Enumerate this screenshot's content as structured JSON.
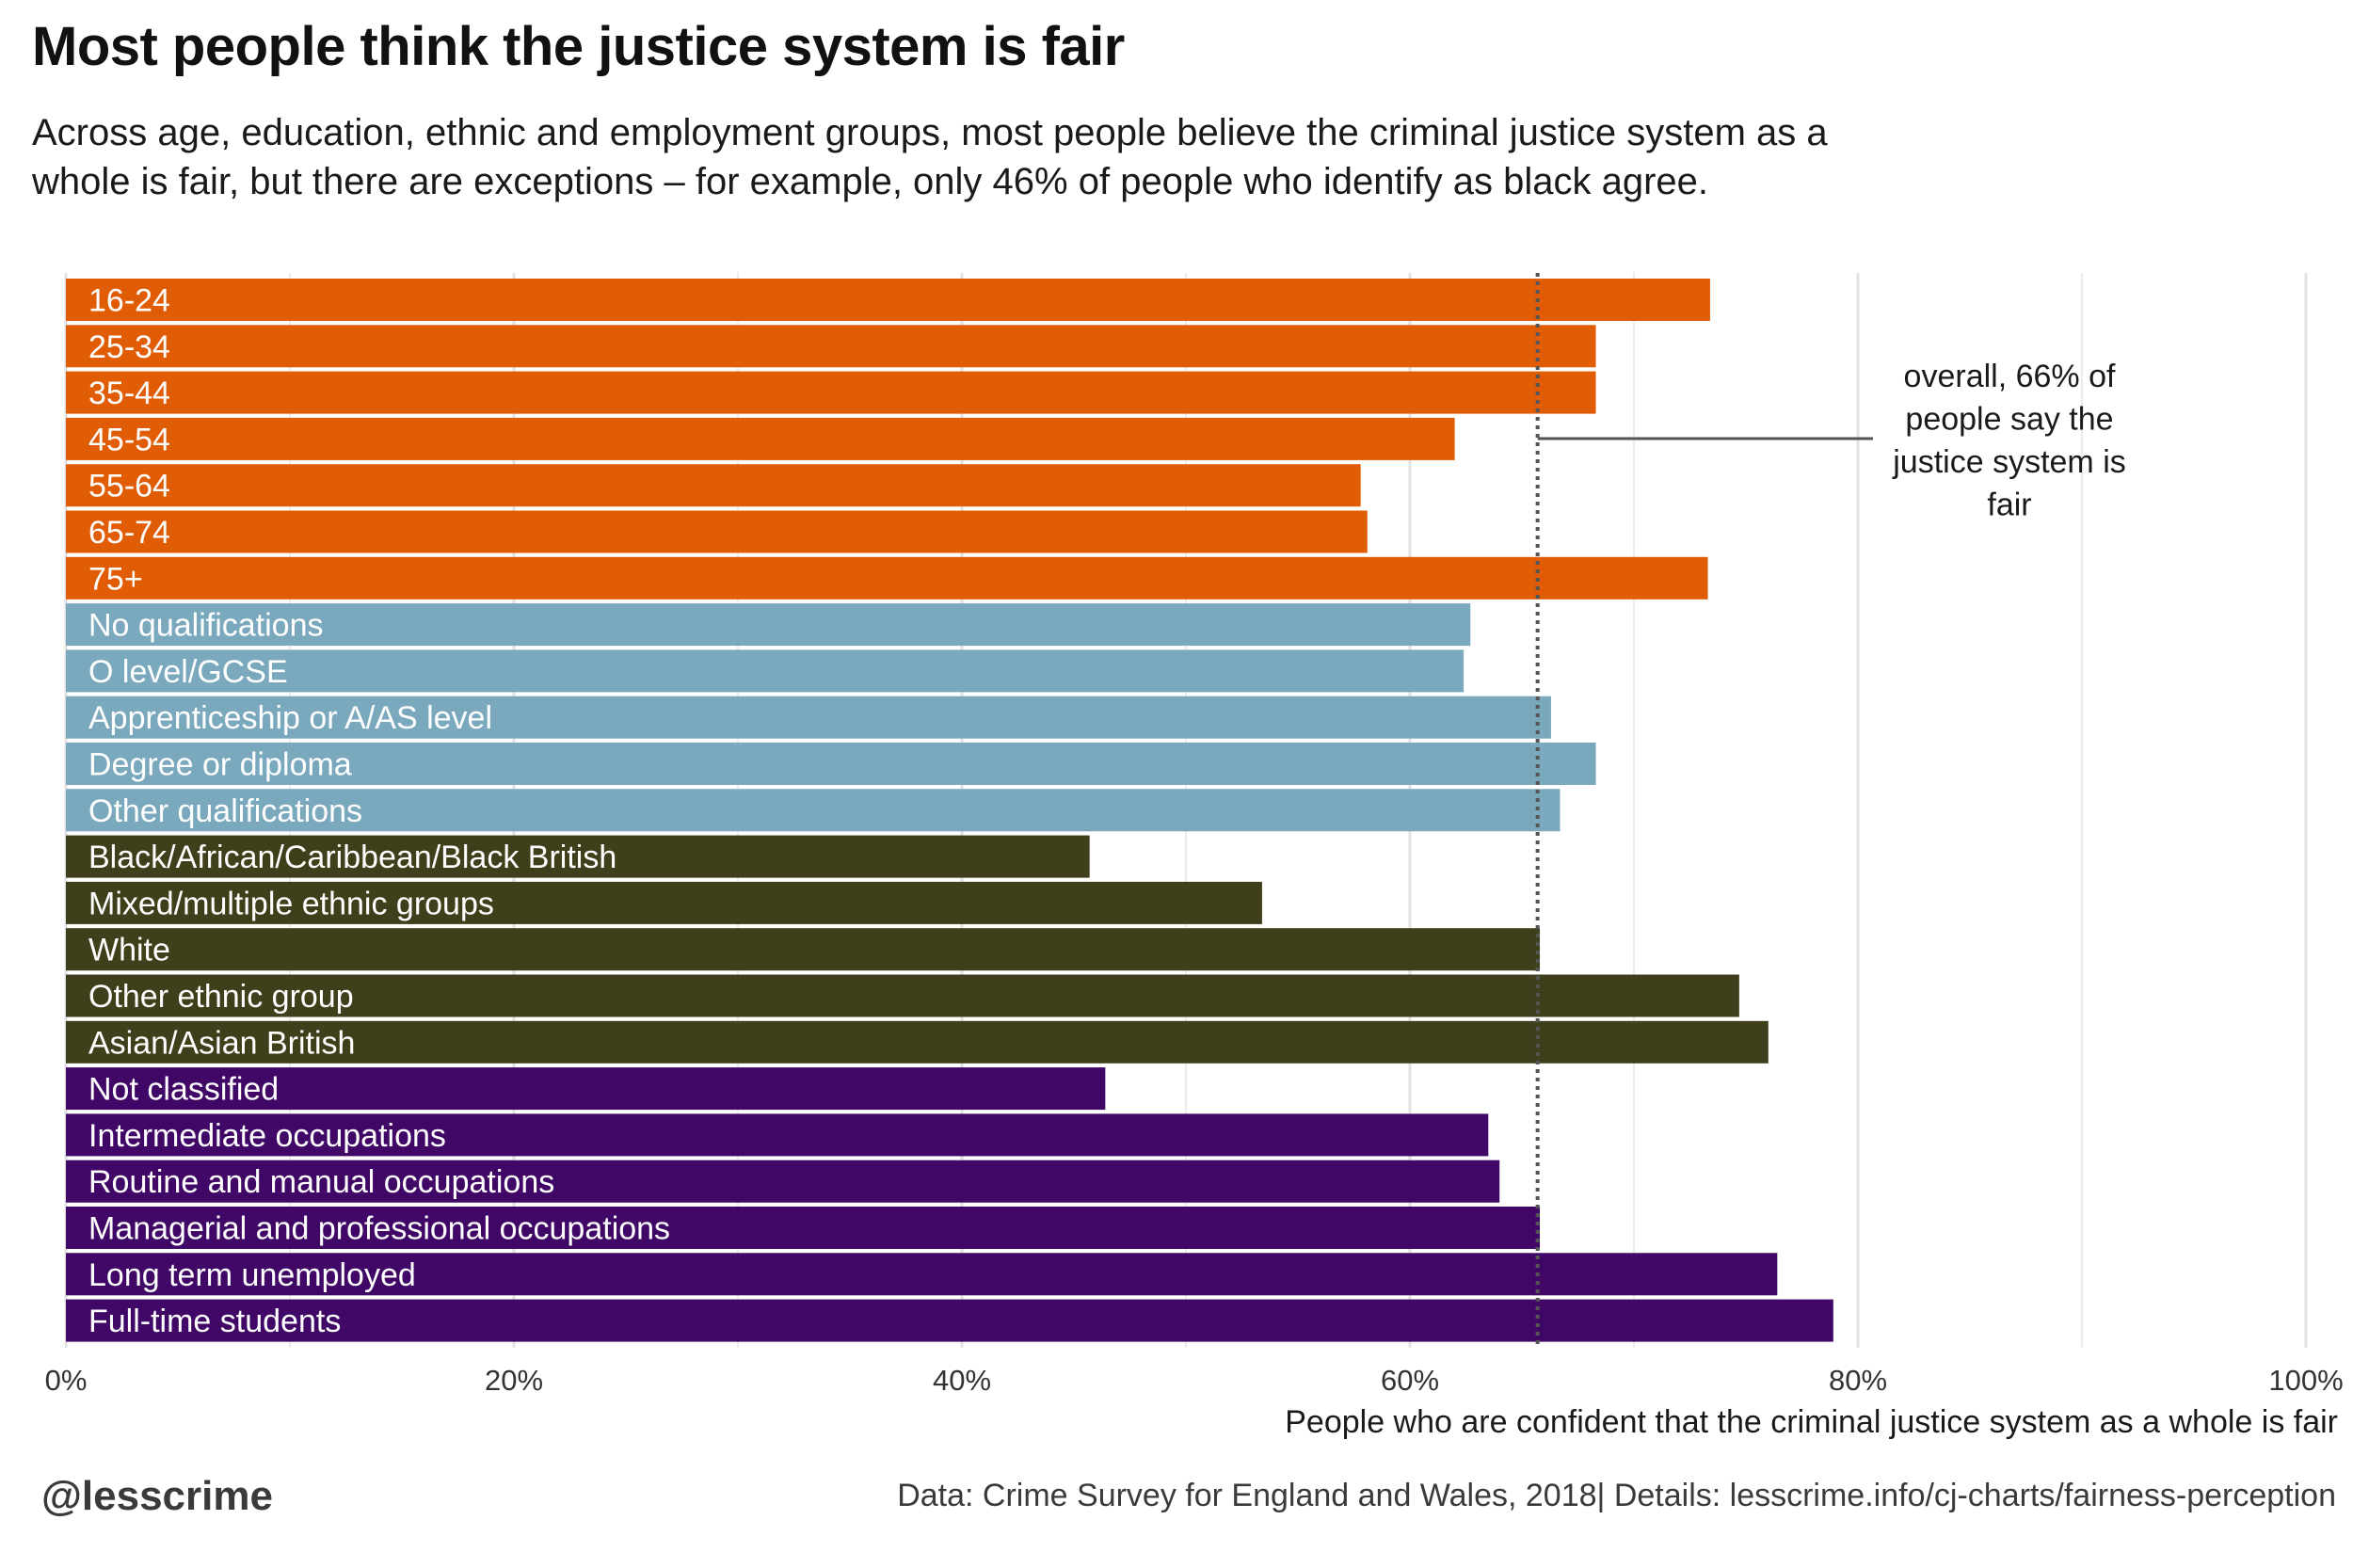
{
  "title": "Most people think the justice system is fair",
  "subtitle": "Across age, education, ethnic and employment groups, most people believe the criminal justice system as a whole is fair, but there are exceptions – for example, only 46% of people who identify as black agree.",
  "footer": {
    "handle": "@lesscrime",
    "source": "Data: Crime Survey for England and Wales, 2018",
    "details": "Details: lesscrime.info/cj-charts/fairness-perception"
  },
  "chart_data": {
    "type": "bar",
    "orientation": "horizontal",
    "xlabel": "People who are confident that the criminal justice system as a whole is fair",
    "xlim": [
      0,
      100
    ],
    "ticks": [
      {
        "value": 0,
        "label": "0%"
      },
      {
        "value": 20,
        "label": "20%"
      },
      {
        "value": 40,
        "label": "40%"
      },
      {
        "value": 60,
        "label": "60%"
      },
      {
        "value": 80,
        "label": "80%"
      },
      {
        "value": 100,
        "label": "100%"
      }
    ],
    "minor_gridlines": [
      10,
      30,
      50,
      70,
      90
    ],
    "grid": true,
    "reference_line": {
      "value": 65.7,
      "style": "dotted",
      "annotation": [
        "overall, 66% of",
        "people say the",
        "justice system is",
        "fair"
      ]
    },
    "groups": [
      {
        "color": "#e05c05",
        "bars": [
          {
            "category": "16-24",
            "value": 73.4
          },
          {
            "category": "25-34",
            "value": 68.3
          },
          {
            "category": "35-44",
            "value": 68.3
          },
          {
            "category": "45-54",
            "value": 62.0
          },
          {
            "category": "55-64",
            "value": 57.8
          },
          {
            "category": "65-74",
            "value": 58.1
          },
          {
            "category": "75+",
            "value": 73.3
          }
        ]
      },
      {
        "color": "#7aa9bd",
        "bars": [
          {
            "category": "No qualifications",
            "value": 62.7
          },
          {
            "category": "O level/GCSE",
            "value": 62.4
          },
          {
            "category": "Apprenticeship or A/AS level",
            "value": 66.3
          },
          {
            "category": "Degree or diploma",
            "value": 68.3
          },
          {
            "category": "Other qualifications",
            "value": 66.7
          }
        ]
      },
      {
        "color": "#3f3f1b",
        "bars": [
          {
            "category": "Black/African/Caribbean/Black British",
            "value": 45.7
          },
          {
            "category": "Mixed/multiple ethnic groups",
            "value": 53.4
          },
          {
            "category": "White",
            "value": 65.8
          },
          {
            "category": "Other ethnic group",
            "value": 74.7
          },
          {
            "category": "Asian/Asian British",
            "value": 76.0
          }
        ]
      },
      {
        "color": "#400766",
        "bars": [
          {
            "category": "Not classified",
            "value": 46.4
          },
          {
            "category": "Intermediate occupations",
            "value": 63.5
          },
          {
            "category": "Routine and manual occupations",
            "value": 64.0
          },
          {
            "category": "Managerial and professional occupations",
            "value": 65.8
          },
          {
            "category": "Long term unemployed",
            "value": 76.4
          },
          {
            "category": "Full-time students",
            "value": 78.9
          }
        ]
      }
    ]
  }
}
